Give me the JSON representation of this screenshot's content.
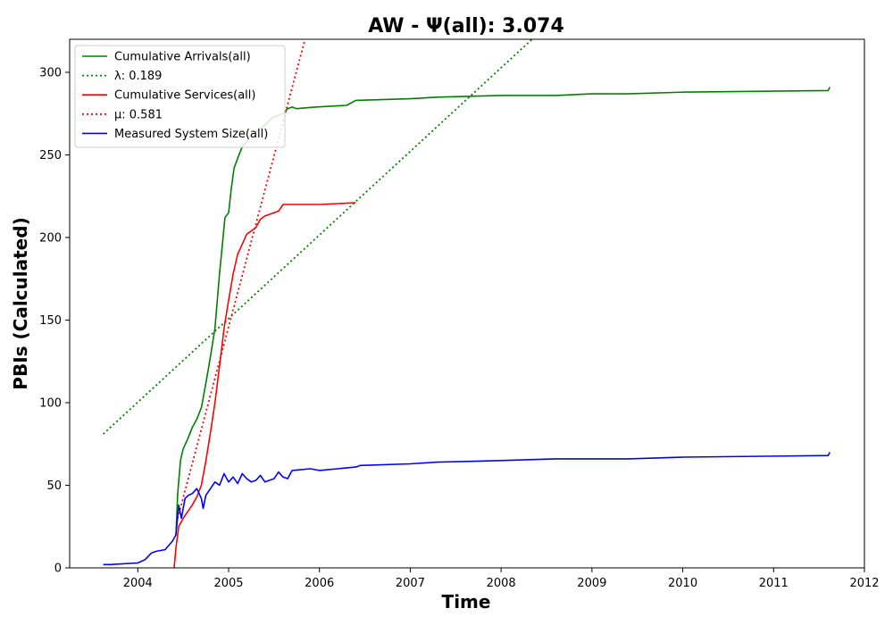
{
  "chart_data": {
    "type": "line",
    "title": "AW -  Ψ(all): 3.074",
    "xlabel": "Time",
    "ylabel": "PBIs (Calculated)",
    "xlim": [
      2003.25,
      2012.0
    ],
    "ylim": [
      0,
      320
    ],
    "x_ticks": [
      2004,
      2005,
      2006,
      2007,
      2008,
      2009,
      2010,
      2011,
      2012
    ],
    "y_ticks": [
      0,
      50,
      100,
      150,
      200,
      250,
      300
    ],
    "grid": false,
    "legend_position": "upper-left",
    "series": [
      {
        "name": "Cumulative Arrivals(all)",
        "style": "solid",
        "color": "#008000",
        "points": [
          [
            2004.42,
            20
          ],
          [
            2004.44,
            45
          ],
          [
            2004.47,
            65
          ],
          [
            2004.5,
            72
          ],
          [
            2004.55,
            78
          ],
          [
            2004.6,
            85
          ],
          [
            2004.65,
            90
          ],
          [
            2004.7,
            97
          ],
          [
            2004.75,
            112
          ],
          [
            2004.8,
            128
          ],
          [
            2004.85,
            145
          ],
          [
            2004.88,
            165
          ],
          [
            2004.9,
            178
          ],
          [
            2004.93,
            195
          ],
          [
            2004.96,
            212
          ],
          [
            2005.0,
            215
          ],
          [
            2005.03,
            230
          ],
          [
            2005.06,
            242
          ],
          [
            2005.1,
            248
          ],
          [
            2005.15,
            255
          ],
          [
            2005.2,
            258
          ],
          [
            2005.25,
            262
          ],
          [
            2005.3,
            264
          ],
          [
            2005.35,
            266
          ],
          [
            2005.4,
            268
          ],
          [
            2005.45,
            271
          ],
          [
            2005.5,
            273
          ],
          [
            2005.55,
            274
          ],
          [
            2005.6,
            275
          ],
          [
            2005.65,
            278
          ],
          [
            2005.7,
            279
          ],
          [
            2005.75,
            278
          ],
          [
            2005.95,
            279
          ],
          [
            2006.3,
            280
          ],
          [
            2006.4,
            283
          ],
          [
            2007.0,
            284
          ],
          [
            2007.3,
            285
          ],
          [
            2008.0,
            286
          ],
          [
            2008.6,
            286
          ],
          [
            2009.0,
            287
          ],
          [
            2009.4,
            287
          ],
          [
            2010.0,
            288
          ],
          [
            2011.6,
            289
          ],
          [
            2011.62,
            291
          ]
        ]
      },
      {
        "name": "λ: 0.189",
        "style": "dotted",
        "color": "#008000",
        "points": [
          [
            2003.62,
            81
          ],
          [
            2008.38,
            322
          ]
        ]
      },
      {
        "name": "Cumulative Services(all)",
        "style": "solid",
        "color": "#ff0000",
        "points": [
          [
            2004.4,
            0
          ],
          [
            2004.42,
            12
          ],
          [
            2004.45,
            25
          ],
          [
            2004.5,
            30
          ],
          [
            2004.55,
            34
          ],
          [
            2004.6,
            38
          ],
          [
            2004.65,
            43
          ],
          [
            2004.7,
            50
          ],
          [
            2004.75,
            65
          ],
          [
            2004.8,
            82
          ],
          [
            2004.85,
            100
          ],
          [
            2004.9,
            122
          ],
          [
            2004.95,
            145
          ],
          [
            2005.0,
            162
          ],
          [
            2005.05,
            178
          ],
          [
            2005.1,
            190
          ],
          [
            2005.15,
            196
          ],
          [
            2005.2,
            202
          ],
          [
            2005.3,
            206
          ],
          [
            2005.35,
            211
          ],
          [
            2005.4,
            213
          ],
          [
            2005.5,
            215
          ],
          [
            2005.55,
            216
          ],
          [
            2005.6,
            220
          ],
          [
            2006.0,
            220
          ],
          [
            2006.4,
            221
          ]
        ]
      },
      {
        "name": "μ: 0.581",
        "style": "dotted",
        "color": "#ff0000",
        "points": [
          [
            2004.44,
            30
          ],
          [
            2005.85,
            322
          ]
        ]
      },
      {
        "name": "Measured System Size(all)",
        "style": "solid",
        "color": "#0000ff",
        "points": [
          [
            2003.62,
            2
          ],
          [
            2003.7,
            2
          ],
          [
            2004.0,
            3
          ],
          [
            2004.08,
            5
          ],
          [
            2004.15,
            9
          ],
          [
            2004.2,
            10
          ],
          [
            2004.3,
            11
          ],
          [
            2004.38,
            16
          ],
          [
            2004.42,
            20
          ],
          [
            2004.45,
            38
          ],
          [
            2004.48,
            30
          ],
          [
            2004.52,
            42
          ],
          [
            2004.56,
            44
          ],
          [
            2004.6,
            45
          ],
          [
            2004.65,
            48
          ],
          [
            2004.7,
            42
          ],
          [
            2004.72,
            36
          ],
          [
            2004.75,
            44
          ],
          [
            2004.8,
            48
          ],
          [
            2004.85,
            52
          ],
          [
            2004.9,
            50
          ],
          [
            2004.95,
            57
          ],
          [
            2005.0,
            52
          ],
          [
            2005.05,
            55
          ],
          [
            2005.1,
            51
          ],
          [
            2005.15,
            57
          ],
          [
            2005.2,
            54
          ],
          [
            2005.25,
            52
          ],
          [
            2005.3,
            53
          ],
          [
            2005.35,
            56
          ],
          [
            2005.4,
            52
          ],
          [
            2005.5,
            54
          ],
          [
            2005.55,
            58
          ],
          [
            2005.6,
            55
          ],
          [
            2005.65,
            54
          ],
          [
            2005.7,
            59
          ],
          [
            2005.9,
            60
          ],
          [
            2006.0,
            59
          ],
          [
            2006.4,
            61
          ],
          [
            2006.45,
            62
          ],
          [
            2007.0,
            63
          ],
          [
            2007.3,
            64
          ],
          [
            2008.0,
            65
          ],
          [
            2008.6,
            66
          ],
          [
            2009.4,
            66
          ],
          [
            2010.0,
            67
          ],
          [
            2011.6,
            68
          ],
          [
            2011.62,
            70
          ]
        ]
      }
    ]
  }
}
